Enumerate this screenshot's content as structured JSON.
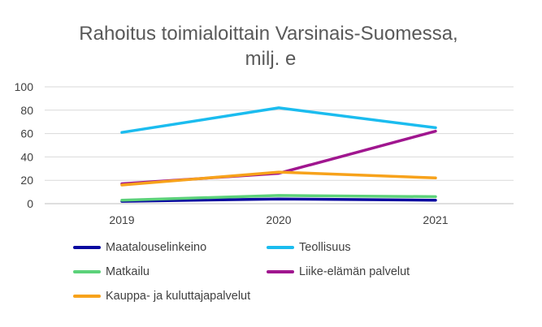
{
  "chart_data": {
    "type": "line",
    "title": "Rahoitus toimialoittain Varsinais-Suomessa, milj. e",
    "title_lines": [
      "Rahoitus toimialoittain Varsinais-Suomessa,",
      "milj. e"
    ],
    "x": [
      "2019",
      "2020",
      "2021"
    ],
    "ylim": [
      0,
      100
    ],
    "yticks": [
      0,
      20,
      40,
      60,
      80,
      100
    ],
    "grid": true,
    "legend_position": "bottom",
    "series": [
      {
        "name": "Maatalouselinkeino",
        "color": "#0a0aa0",
        "values": [
          2,
          4,
          3
        ]
      },
      {
        "name": "Teollisuus",
        "color": "#1bbcef",
        "values": [
          61,
          82,
          65
        ]
      },
      {
        "name": "Matkailu",
        "color": "#5cd27a",
        "values": [
          3,
          7,
          6
        ]
      },
      {
        "name": "Liike-elämän palvelut",
        "color": "#a0168f",
        "values": [
          17,
          26,
          62
        ]
      },
      {
        "name": "Kauppa- ja kuluttajapalvelut",
        "color": "#f7a21b",
        "values": [
          16,
          27,
          22
        ]
      }
    ]
  }
}
